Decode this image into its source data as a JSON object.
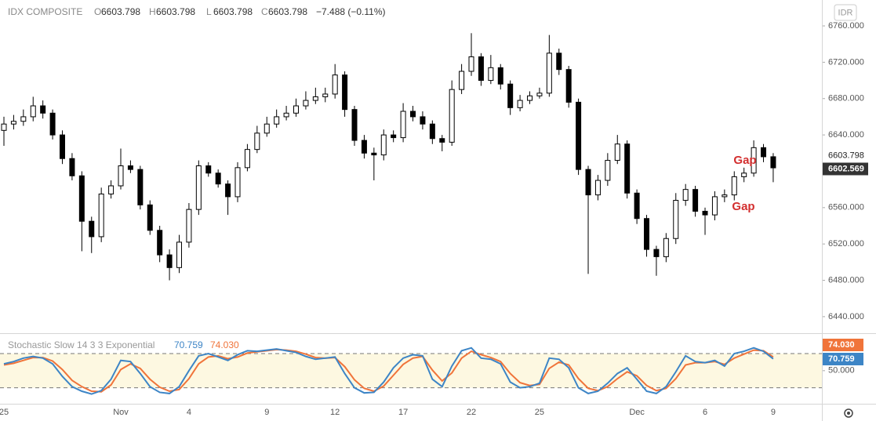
{
  "header": {
    "symbol": "IDX COMPOSITE",
    "fields": [
      {
        "label": "O",
        "value": 6603.798
      },
      {
        "label": "H",
        "value": 6603.798
      },
      {
        "label": "L",
        "value": 6603.798
      },
      {
        "label": "C",
        "value": 6603.798
      }
    ],
    "change": "−7.488 (−0.11%)"
  },
  "currency": "IDR",
  "chart_data": [
    {
      "type": "candlestick",
      "categories": [
        "25",
        null,
        null,
        null,
        null,
        null,
        null,
        null,
        null,
        null,
        null,
        null,
        "Nov",
        null,
        null,
        null,
        null,
        null,
        null,
        "4",
        null,
        null,
        null,
        null,
        null,
        null,
        null,
        "9",
        null,
        null,
        null,
        null,
        null,
        null,
        "12",
        null,
        null,
        null,
        null,
        null,
        null,
        "17",
        null,
        null,
        null,
        null,
        null,
        null,
        "22",
        null,
        null,
        null,
        null,
        null,
        null,
        "25",
        null,
        null,
        null,
        null,
        null,
        null,
        null,
        null,
        null,
        "Dec",
        null,
        null,
        null,
        null,
        null,
        null,
        "6",
        null,
        null,
        null,
        null,
        null,
        null,
        "9"
      ],
      "open": [
        6645,
        6652,
        6655,
        6660,
        6672,
        6664,
        6640,
        6614,
        6595,
        6545,
        6528,
        6575,
        6584,
        6606,
        6602,
        6563,
        6535,
        6508,
        6494,
        6522,
        6558,
        6606,
        6598,
        6586,
        6572,
        6604,
        6624,
        6642,
        6652,
        6660,
        6664,
        6672,
        6678,
        6682,
        6685,
        6706,
        6668,
        6634,
        6620,
        6618,
        6640,
        6637,
        6666,
        6660,
        6652,
        6636,
        6632,
        6690,
        6710,
        6726,
        6700,
        6714,
        6696,
        6670,
        6678,
        6683,
        6686,
        6730,
        6712,
        6676,
        6602,
        6574,
        6590,
        6612,
        6630,
        6576,
        6548,
        6514,
        6506,
        6526,
        6568,
        6580,
        6556,
        6552,
        6572,
        6574,
        6594,
        6598,
        6626,
        6616
      ],
      "high": [
        6660,
        6662,
        6668,
        6682,
        6678,
        6668,
        6645,
        6620,
        6600,
        6550,
        6582,
        6590,
        6625,
        6612,
        6606,
        6568,
        6540,
        6514,
        6530,
        6565,
        6612,
        6610,
        6602,
        6590,
        6610,
        6630,
        6650,
        6660,
        6668,
        6672,
        6680,
        6688,
        6692,
        6692,
        6718,
        6710,
        6672,
        6640,
        6626,
        6646,
        6645,
        6675,
        6672,
        6666,
        6656,
        6640,
        6700,
        6718,
        6752,
        6730,
        6728,
        6718,
        6700,
        6684,
        6688,
        6692,
        6750,
        6735,
        6716,
        6680,
        6606,
        6596,
        6620,
        6640,
        6634,
        6580,
        6552,
        6518,
        6532,
        6576,
        6586,
        6584,
        6560,
        6578,
        6580,
        6600,
        6604,
        6634,
        6630,
        6620
      ],
      "low": [
        6628,
        6646,
        6650,
        6655,
        6658,
        6635,
        6608,
        6590,
        6512,
        6510,
        6522,
        6570,
        6580,
        6598,
        6558,
        6530,
        6500,
        6480,
        6488,
        6516,
        6552,
        6594,
        6582,
        6552,
        6566,
        6600,
        6620,
        6638,
        6648,
        6656,
        6660,
        6668,
        6674,
        6676,
        6680,
        6660,
        6628,
        6614,
        6590,
        6612,
        6632,
        6632,
        6655,
        6646,
        6630,
        6622,
        6628,
        6685,
        6705,
        6694,
        6696,
        6690,
        6662,
        6666,
        6674,
        6680,
        6682,
        6706,
        6670,
        6596,
        6487,
        6568,
        6584,
        6608,
        6570,
        6542,
        6506,
        6485,
        6500,
        6520,
        6562,
        6550,
        6530,
        6546,
        6566,
        6568,
        6588,
        6594,
        6610,
        6588
      ],
      "close": [
        6652,
        6655,
        6660,
        6672,
        6664,
        6640,
        6614,
        6595,
        6545,
        6528,
        6575,
        6584,
        6606,
        6602,
        6563,
        6535,
        6508,
        6494,
        6522,
        6558,
        6606,
        6598,
        6586,
        6572,
        6604,
        6624,
        6642,
        6652,
        6660,
        6664,
        6672,
        6678,
        6682,
        6685,
        6706,
        6668,
        6634,
        6620,
        6618,
        6640,
        6637,
        6666,
        6660,
        6652,
        6636,
        6632,
        6690,
        6710,
        6726,
        6700,
        6714,
        6696,
        6670,
        6678,
        6683,
        6686,
        6730,
        6712,
        6676,
        6602,
        6574,
        6590,
        6612,
        6630,
        6576,
        6548,
        6514,
        6506,
        6526,
        6568,
        6580,
        6556,
        6552,
        6572,
        6574,
        6594,
        6598,
        6626,
        6616,
        6603.798
      ],
      "up_color": "#ffffff",
      "down_color": "#000000",
      "ylim": [
        6421.8,
        6788.5
      ],
      "yticks": [
        {
          "value": 6440,
          "label": "6440.000"
        },
        {
          "value": 6480,
          "label": "6480.000"
        },
        {
          "value": 6520,
          "label": "6520.000"
        },
        {
          "value": 6560,
          "label": "6560.000"
        },
        {
          "value": 6600,
          "label": "6600.000"
        },
        {
          "value": 6640,
          "label": "6640.000"
        },
        {
          "value": 6680,
          "label": "6680.000"
        },
        {
          "value": 6720,
          "label": "6720.000"
        },
        {
          "value": 6760,
          "label": "6760.000"
        }
      ],
      "grid": false,
      "last_price": {
        "value": 6603.798,
        "label": "6603.798"
      },
      "marker_price": {
        "value": 6602.569,
        "label": "6602.569"
      },
      "annotations": [
        "Gap",
        "Gap"
      ]
    },
    {
      "type": "line",
      "title": "Stochastic Slow 14 3 3 Exponential",
      "series": [
        {
          "color": "#3d85c6",
          "last_label": "70.759",
          "values": [
            62,
            66,
            72,
            75,
            72,
            62,
            40,
            22,
            14,
            9,
            15,
            35,
            68,
            66,
            45,
            22,
            12,
            10,
            22,
            50,
            76,
            80,
            74,
            68,
            78,
            85,
            84,
            86,
            88,
            85,
            82,
            75,
            70,
            72,
            74,
            45,
            20,
            11,
            12,
            30,
            55,
            72,
            78,
            76,
            35,
            22,
            58,
            85,
            90,
            72,
            70,
            62,
            30,
            20,
            22,
            28,
            72,
            70,
            55,
            20,
            10,
            14,
            28,
            45,
            55,
            35,
            14,
            10,
            22,
            48,
            76,
            66,
            64,
            68,
            58,
            80,
            84,
            90,
            84,
            70.759
          ]
        },
        {
          "color": "#f0743a",
          "last_label": "74.030",
          "values": [
            60,
            63,
            68,
            73,
            73,
            67,
            52,
            33,
            22,
            14,
            13,
            25,
            52,
            62,
            54,
            35,
            21,
            14,
            17,
            36,
            62,
            74,
            76,
            71,
            74,
            81,
            83,
            85,
            87,
            86,
            84,
            79,
            73,
            72,
            73,
            57,
            34,
            19,
            14,
            23,
            42,
            61,
            72,
            75,
            51,
            32,
            46,
            72,
            84,
            78,
            73,
            66,
            45,
            29,
            24,
            26,
            54,
            65,
            60,
            36,
            19,
            15,
            22,
            36,
            48,
            41,
            24,
            15,
            19,
            36,
            60,
            64,
            64,
            66,
            61,
            72,
            79,
            86,
            85,
            74.03
          ]
        }
      ],
      "ylim": [
        -8,
        113
      ],
      "yticks": [
        {
          "value": 50,
          "label": "50.000"
        }
      ],
      "bands": [
        20,
        80
      ],
      "band_color": "#fdf8e1"
    }
  ]
}
